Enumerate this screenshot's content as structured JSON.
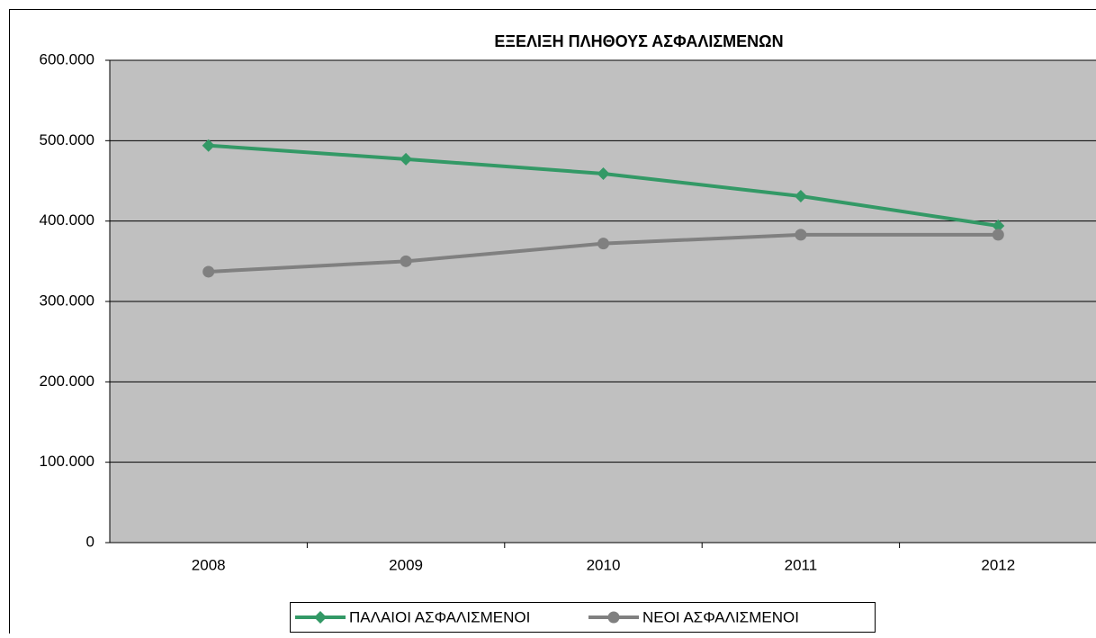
{
  "chart_data": {
    "type": "line",
    "title": "ΕΞΕΛΙΞΗ ΠΛΗΘΟΥΣ ΑΣΦΑΛΙΣΜΕΝΩΝ",
    "categories": [
      "2008",
      "2009",
      "2010",
      "2011",
      "2012"
    ],
    "series": [
      {
        "name": "ΠΑΛΑΙΟΙ ΑΣΦΑΛΙΣΜΕΝΟΙ",
        "color": "#339966",
        "marker": "diamond",
        "values": [
          494000,
          477000,
          459000,
          431000,
          394000
        ]
      },
      {
        "name": "ΝΕΟΙ ΑΣΦΑΛΙΣΜΕΝΟΙ",
        "color": "#808080",
        "marker": "circle",
        "values": [
          337000,
          350000,
          372000,
          383000,
          383000
        ]
      }
    ],
    "ylim": [
      0,
      600000
    ],
    "yticks": [
      0,
      {
        "value": 100000,
        "label": "100.000"
      },
      {
        "value": 200000,
        "label": "200.000"
      },
      {
        "value": 300000,
        "label": "300.000"
      },
      {
        "value": 400000,
        "label": "400.000"
      },
      {
        "value": 500000,
        "label": "500.000"
      },
      {
        "value": 600000,
        "label": "600.000"
      }
    ],
    "grid": true,
    "legend": "bottom"
  }
}
